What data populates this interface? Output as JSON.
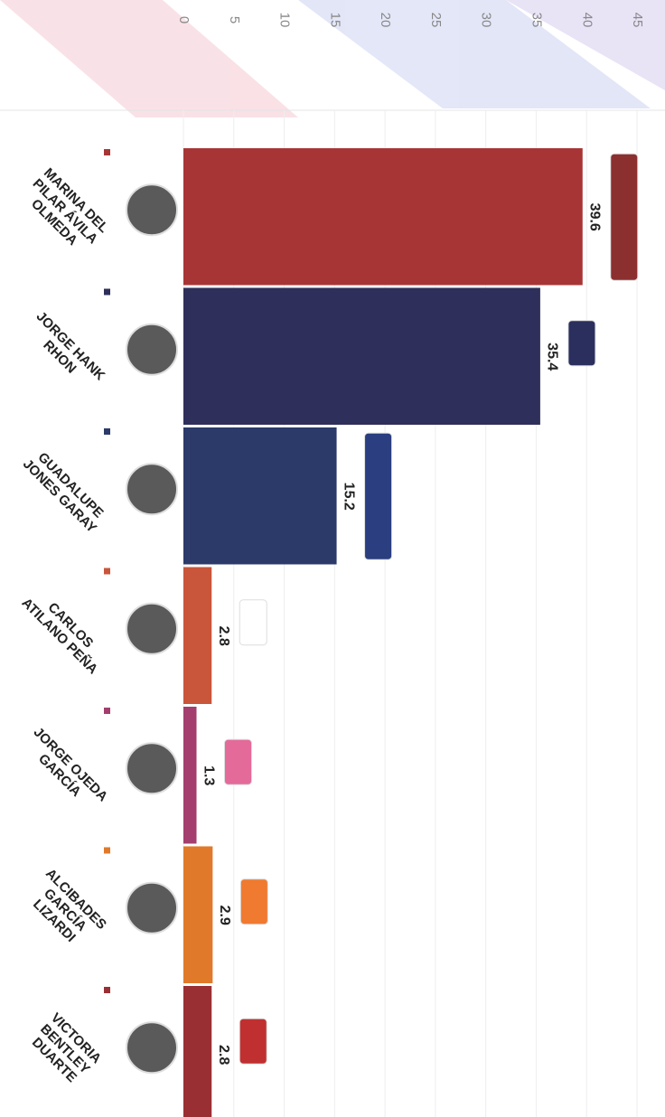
{
  "chart_data": {
    "type": "hbar",
    "categories": [
      "MARINA DEL PILAR ÁVILA OLMEDA",
      "JORGE HANK RHON",
      "GUADALUPE JONES GARAY",
      "CARLOS ATILANO PEÑA",
      "JORGE OJEDA GARCÍA",
      "ALCIBADES GARCÍA LIZARDI",
      "VICTORIA BENTLEY DUARTE"
    ],
    "values": [
      39.6,
      35.4,
      15.2,
      2.8,
      1.3,
      2.9,
      2.8
    ],
    "colors": [
      "#a83535",
      "#2e2f5a",
      "#2c3a6a",
      "#c9553a",
      "#a33e6e",
      "#e07a2a",
      "#9a2f33"
    ],
    "xlim": [
      0,
      45
    ],
    "xticks": [
      0,
      5,
      10,
      15,
      20,
      25,
      30,
      35,
      40,
      45
    ],
    "grid": true
  }
}
